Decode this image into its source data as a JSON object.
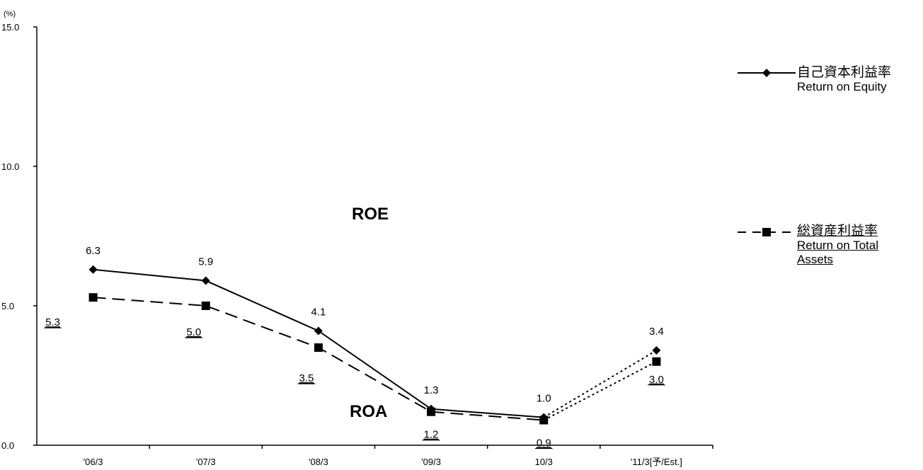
{
  "chart_data": {
    "type": "line",
    "y_unit": "(%)",
    "ylim": [
      0,
      15
    ],
    "y_ticks": [
      "15.0",
      "10.0",
      "5.0",
      "0.0"
    ],
    "categories": [
      "'06/3",
      "'07/3",
      "'08/3",
      "'09/3",
      "10/3",
      "'11/3[予/Est.]"
    ],
    "series": [
      {
        "key": "roe",
        "name": "自己資本利益率 Return on Equity",
        "name_jp": "自己資本利益率",
        "name_en": "Return on Equity",
        "marker": "diamond",
        "line_style": "solid",
        "forecast_line_style": "dotted",
        "values": [
          6.3,
          5.9,
          4.1,
          1.3,
          1.0,
          3.4
        ],
        "labels": [
          "6.3",
          "5.9",
          "4.1",
          "1.3",
          "1.0",
          "3.4"
        ]
      },
      {
        "key": "roa",
        "name": "総資産利益率 Return on Total Assets",
        "name_jp": "総資産利益率",
        "name_en_1": "Return on Total",
        "name_en_2": "Assets",
        "marker": "square",
        "line_style": "dashed",
        "forecast_line_style": "dotted",
        "values": [
          5.3,
          5.0,
          3.5,
          1.2,
          0.9,
          3.0
        ],
        "labels": [
          "5.3",
          "5.0",
          "3.5",
          "1.2",
          "0.9",
          "3.0"
        ],
        "labels_underlined": true
      }
    ],
    "annotations": {
      "roe": "ROE",
      "roa": "ROA"
    },
    "legend_position": "right",
    "grid": false
  }
}
